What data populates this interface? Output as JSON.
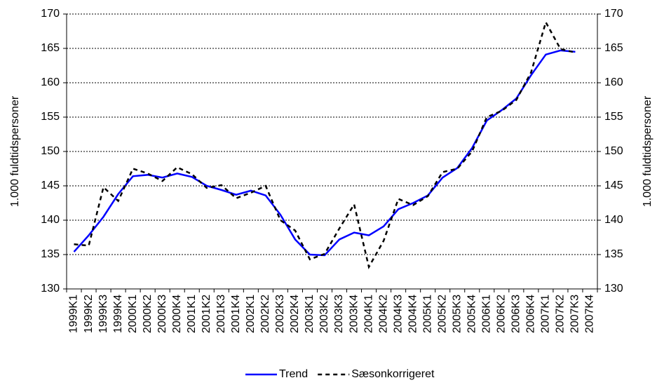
{
  "chart_data": {
    "type": "line",
    "y_label": "1.000 fuldtidspersoner",
    "y2_label": "1.000 fuldtidspersoner",
    "categories": [
      "1999K1",
      "1999K2",
      "1999K3",
      "1999K4",
      "2000K1",
      "2000K2",
      "2000K3",
      "2000K4",
      "2001K1",
      "2001K2",
      "2001K3",
      "2001K4",
      "2002K1",
      "2002K2",
      "2002K3",
      "2002K4",
      "2003K1",
      "2003K2",
      "2003K3",
      "2003K4",
      "2004K1",
      "2004K2",
      "2004K3",
      "2004K4",
      "2005K1",
      "2005K2",
      "2005K3",
      "2005K4",
      "2006K1",
      "2006K2",
      "2006K3",
      "2006K4",
      "2007K1",
      "2007K2",
      "2007K3",
      "2007K4"
    ],
    "series": [
      {
        "name": "Trend",
        "color": "#0000ff",
        "line_style": "solid",
        "values": [
          135.4,
          137.8,
          140.5,
          143.8,
          146.4,
          146.6,
          146.2,
          146.8,
          146.3,
          145.0,
          144.4,
          143.7,
          144.3,
          143.6,
          140.8,
          137.2,
          135.0,
          134.9,
          137.2,
          138.2,
          137.8,
          139.1,
          141.6,
          142.5,
          143.6,
          146.2,
          147.6,
          150.5,
          154.5,
          156.0,
          157.7,
          161.1,
          164.1,
          164.7,
          164.5,
          null
        ]
      },
      {
        "name": "Sæsonkorrigeret",
        "color": "#000000",
        "line_style": "dashed",
        "values": [
          136.5,
          136.3,
          144.8,
          142.8,
          147.5,
          146.8,
          145.7,
          147.7,
          146.7,
          144.7,
          145.1,
          143.2,
          144.0,
          145.0,
          140.0,
          138.5,
          134.3,
          135.1,
          138.8,
          142.3,
          133.2,
          137.0,
          143.1,
          142.2,
          143.5,
          147.0,
          147.5,
          150.0,
          155.0,
          155.9,
          157.5,
          161.5,
          168.8,
          164.9,
          164.4,
          null
        ]
      }
    ],
    "ylim": [
      130,
      170
    ],
    "yticks": [
      130,
      135,
      140,
      145,
      150,
      155,
      160,
      165,
      170
    ],
    "y2lim": [
      130,
      170
    ],
    "y2ticks": [
      130,
      135,
      140,
      145,
      150,
      155,
      160,
      165,
      170
    ],
    "grid": true,
    "legend": "bottom"
  }
}
